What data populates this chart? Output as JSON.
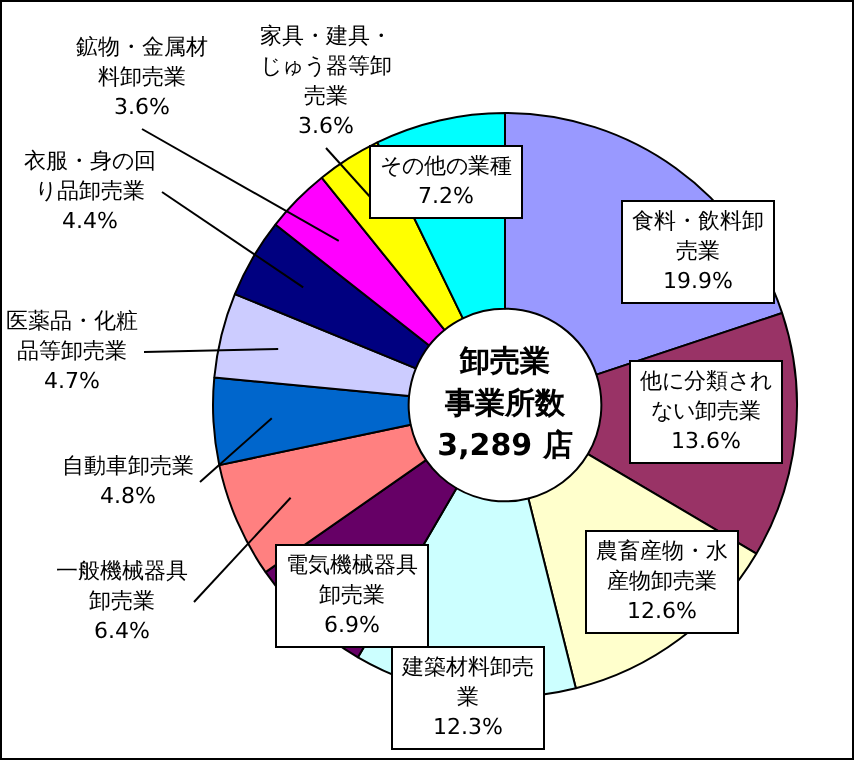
{
  "chart_data": {
    "type": "donut",
    "categories": [
      "食料・飲料卸売業",
      "他に分類されない卸売業",
      "農畜産物・水産物卸売業",
      "建築材料卸売業",
      "電気機械器具卸売業",
      "一般機械器具卸売業",
      "自動車卸売業",
      "医薬品・化粧品等卸売業",
      "衣服・身の回り品卸売業",
      "鉱物・金属材料卸売業",
      "家具・建具・じゅう器等卸売業",
      "その他の業種"
    ],
    "values": [
      19.9,
      13.6,
      12.6,
      12.3,
      6.9,
      6.4,
      4.8,
      4.7,
      4.4,
      3.6,
      3.6,
      7.2
    ],
    "value_labels": [
      "19.9%",
      "13.6%",
      "12.6%",
      "12.3%",
      "6.9%",
      "6.4%",
      "4.8%",
      "4.7%",
      "4.4%",
      "3.6%",
      "3.6%",
      "7.2%"
    ],
    "colors": [
      "#9999ff",
      "#993366",
      "#ffffcc",
      "#ccffff",
      "#660066",
      "#ff8080",
      "#0066cc",
      "#ccccff",
      "#000080",
      "#ff00ff",
      "#ffff00",
      "#00ffff"
    ],
    "annotations": [
      "卸売業",
      "事業所数",
      "3,289 店"
    ],
    "legend": false
  }
}
